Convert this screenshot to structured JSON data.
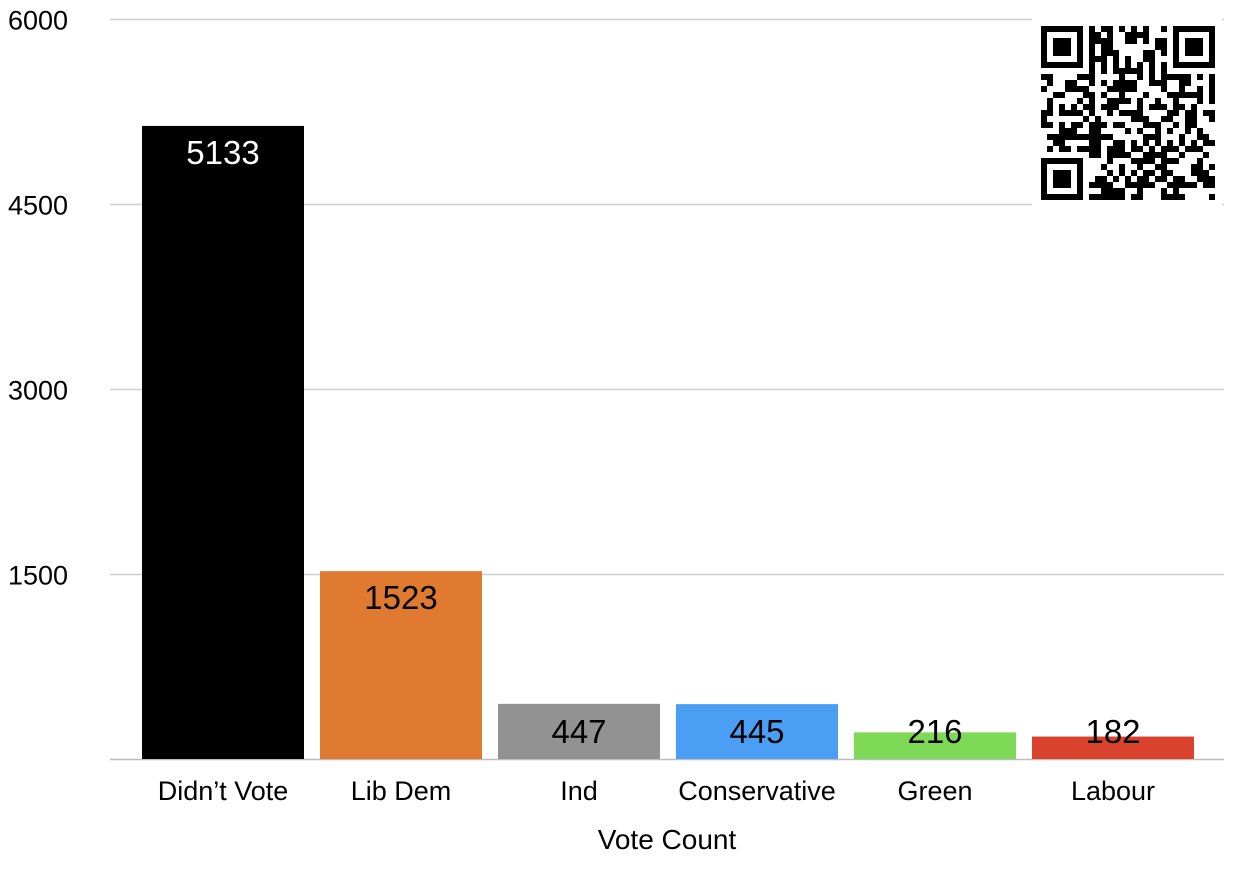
{
  "chart_data": {
    "type": "bar",
    "title": "",
    "xlabel": "Vote Count",
    "ylabel": "",
    "ylim": [
      0,
      6000
    ],
    "yticks": [
      1500,
      3000,
      4500,
      6000
    ],
    "grid": true,
    "legend": "none",
    "categories": [
      "Didn’t Vote",
      "Lib Dem",
      "Ind",
      "Conservative",
      "Green",
      "Labour"
    ],
    "values": [
      5133,
      1523,
      447,
      445,
      216,
      182
    ],
    "data_labels": [
      "5133",
      "1523",
      "447",
      "445",
      "216",
      "182"
    ],
    "colors": [
      "#000000",
      "#E07A30",
      "#929292",
      "#4A9FF5",
      "#7ED957",
      "#D9432E"
    ],
    "label_colors": [
      "#ffffff",
      "#000000",
      "#000000",
      "#000000",
      "#000000",
      "#000000"
    ]
  },
  "qr_icon": "qr-code-icon"
}
